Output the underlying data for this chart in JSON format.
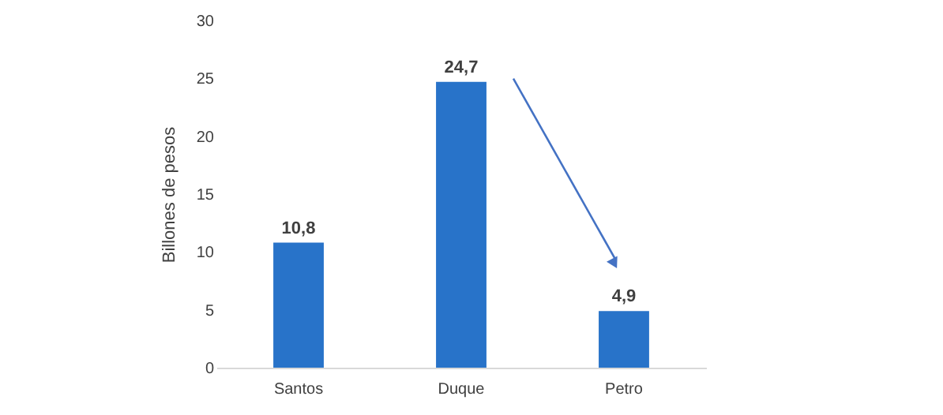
{
  "chart_data": {
    "type": "bar",
    "ylabel": "Billones de pesos",
    "categories": [
      "Santos",
      "Duque",
      "Petro"
    ],
    "values": [
      10.8,
      24.7,
      4.9
    ],
    "color": "#2873c9",
    "ylim": [
      0,
      30
    ],
    "yticks": [
      0,
      5,
      10,
      15,
      20,
      25,
      30
    ],
    "grid": false,
    "value_labels": [
      "10,8",
      "24,7",
      "4,9"
    ]
  }
}
